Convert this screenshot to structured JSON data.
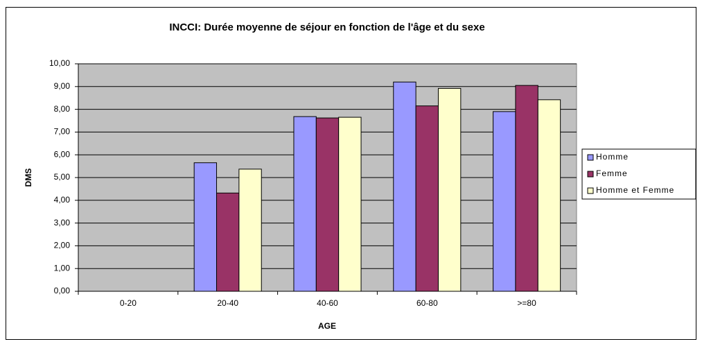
{
  "chart_data": {
    "type": "bar",
    "title": "INCCI: Durée moyenne de séjour en fonction de l'âge et du sexe",
    "x_label": "AGE",
    "y_label": "DMS",
    "categories": [
      "0-20",
      "20-40",
      "40-60",
      "60-80",
      ">=80"
    ],
    "series": [
      {
        "name": "Homme",
        "color": "#9999ff",
        "values": [
          null,
          5.65,
          7.68,
          9.2,
          7.9
        ]
      },
      {
        "name": "Femme",
        "color": "#993366",
        "values": [
          null,
          4.32,
          7.62,
          8.15,
          9.05
        ]
      },
      {
        "name": "Homme et Femme",
        "color": "#ffffcc",
        "values": [
          null,
          5.37,
          7.65,
          8.92,
          8.42
        ]
      }
    ],
    "ylim": [
      0,
      10
    ],
    "yticks": [
      {
        "value": 0,
        "label": "0,00"
      },
      {
        "value": 1,
        "label": "1,00"
      },
      {
        "value": 2,
        "label": "2,00"
      },
      {
        "value": 3,
        "label": "3,00"
      },
      {
        "value": 4,
        "label": "4,00"
      },
      {
        "value": 5,
        "label": "5,00"
      },
      {
        "value": 6,
        "label": "6,00"
      },
      {
        "value": 7,
        "label": "7,00"
      },
      {
        "value": 8,
        "label": "8,00"
      },
      {
        "value": 9,
        "label": "9,00"
      },
      {
        "value": 10,
        "label": "10,00"
      }
    ],
    "grid": true,
    "legend": "right",
    "plot_background": "#c0c0c0"
  }
}
